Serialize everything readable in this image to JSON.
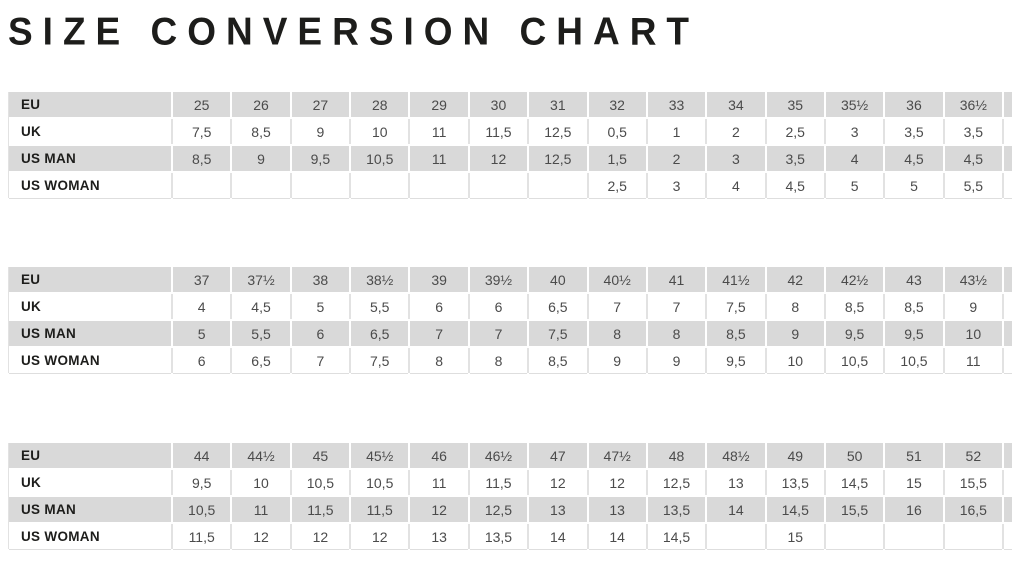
{
  "title": "SIZE CONVERSION CHART",
  "colors": {
    "shaded_row": "#d9d9d9",
    "plain_row": "#ffffff",
    "hairline": "#e2e2e2",
    "title_text": "#1d1d1b",
    "label_text": "#1d1d1b",
    "value_text": "#4b4b4b"
  },
  "row_labels": [
    "EU",
    "UK",
    "US MAN",
    "US WOMAN"
  ],
  "tables": [
    {
      "name": "sizes-eu-25-to-36half",
      "rows": [
        {
          "label": "EU",
          "values": [
            "25",
            "26",
            "27",
            "28",
            "29",
            "30",
            "31",
            "32",
            "33",
            "34",
            "35",
            "35½",
            "36",
            "36½"
          ]
        },
        {
          "label": "UK",
          "values": [
            "7,5",
            "8,5",
            "9",
            "10",
            "11",
            "11,5",
            "12,5",
            "0,5",
            "1",
            "2",
            "2,5",
            "3",
            "3,5",
            "3,5"
          ]
        },
        {
          "label": "US MAN",
          "values": [
            "8,5",
            "9",
            "9,5",
            "10,5",
            "11",
            "12",
            "12,5",
            "1,5",
            "2",
            "3",
            "3,5",
            "4",
            "4,5",
            "4,5"
          ]
        },
        {
          "label": "US WOMAN",
          "values": [
            "",
            "",
            "",
            "",
            "",
            "",
            "",
            "2,5",
            "3",
            "4",
            "4,5",
            "5",
            "5",
            "5,5"
          ]
        }
      ]
    },
    {
      "name": "sizes-eu-37-to-43half",
      "rows": [
        {
          "label": "EU",
          "values": [
            "37",
            "37½",
            "38",
            "38½",
            "39",
            "39½",
            "40",
            "40½",
            "41",
            "41½",
            "42",
            "42½",
            "43",
            "43½"
          ]
        },
        {
          "label": "UK",
          "values": [
            "4",
            "4,5",
            "5",
            "5,5",
            "6",
            "6",
            "6,5",
            "7",
            "7",
            "7,5",
            "8",
            "8,5",
            "8,5",
            "9"
          ]
        },
        {
          "label": "US MAN",
          "values": [
            "5",
            "5,5",
            "6",
            "6,5",
            "7",
            "7",
            "7,5",
            "8",
            "8",
            "8,5",
            "9",
            "9,5",
            "9,5",
            "10"
          ]
        },
        {
          "label": "US WOMAN",
          "values": [
            "6",
            "6,5",
            "7",
            "7,5",
            "8",
            "8",
            "8,5",
            "9",
            "9",
            "9,5",
            "10",
            "10,5",
            "10,5",
            "11"
          ]
        }
      ]
    },
    {
      "name": "sizes-eu-44-to-52",
      "rows": [
        {
          "label": "EU",
          "values": [
            "44",
            "44½",
            "45",
            "45½",
            "46",
            "46½",
            "47",
            "47½",
            "48",
            "48½",
            "49",
            "50",
            "51",
            "52"
          ]
        },
        {
          "label": "UK",
          "values": [
            "9,5",
            "10",
            "10,5",
            "10,5",
            "11",
            "11,5",
            "12",
            "12",
            "12,5",
            "13",
            "13,5",
            "14,5",
            "15",
            "15,5"
          ]
        },
        {
          "label": "US MAN",
          "values": [
            "10,5",
            "11",
            "11,5",
            "11,5",
            "12",
            "12,5",
            "13",
            "13",
            "13,5",
            "14",
            "14,5",
            "15,5",
            "16",
            "16,5"
          ]
        },
        {
          "label": "US WOMAN",
          "values": [
            "11,5",
            "12",
            "12",
            "12",
            "13",
            "13,5",
            "14",
            "14",
            "14,5",
            "",
            "15",
            "",
            "",
            ""
          ]
        }
      ]
    }
  ]
}
